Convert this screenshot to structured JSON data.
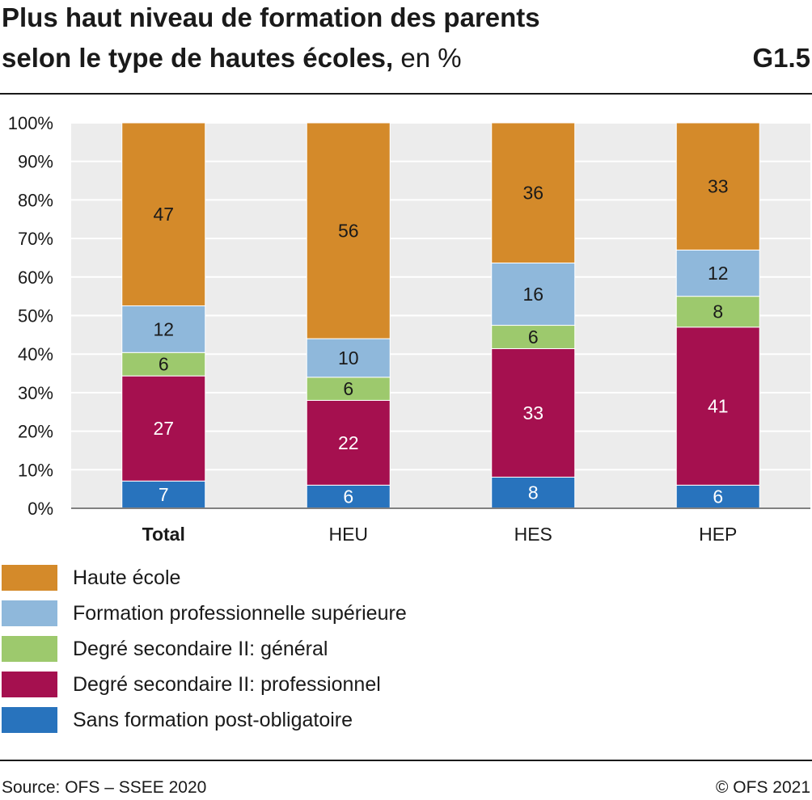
{
  "header": {
    "title_line1": "Plus haut niveau de formation des parents",
    "title_line2_bold": "selon le type de hautes écoles,",
    "title_line2_rest": " en %",
    "code": "G1.5"
  },
  "footer": {
    "source": "Source: OFS – SSEE 2020",
    "copyright": "© OFS 2021"
  },
  "chart_data": {
    "type": "bar",
    "stacked": true,
    "categories": [
      "Total",
      "HEU",
      "HES",
      "HEP"
    ],
    "bold_categories": [
      "Total"
    ],
    "ylim": [
      0,
      100
    ],
    "yticks": [
      "0%",
      "10%",
      "20%",
      "30%",
      "40%",
      "50%",
      "60%",
      "70%",
      "80%",
      "90%",
      "100%"
    ],
    "grid": "horizontal",
    "legend_position": "bottom",
    "series": [
      {
        "name": "Sans formation post-obligatoire",
        "color": "#2873bd",
        "label_color": "#ffffff",
        "values": [
          7,
          6,
          8,
          6
        ]
      },
      {
        "name": "Degré secondaire II: professionnel",
        "color": "#a5104f",
        "label_color": "#ffffff",
        "values": [
          27,
          22,
          33,
          41
        ]
      },
      {
        "name": "Degré secondaire II: général",
        "color": "#9dc96d",
        "label_color": "#1a1a1a",
        "values": [
          6,
          6,
          6,
          8
        ]
      },
      {
        "name": "Formation professionnelle supérieure",
        "color": "#8fb8db",
        "label_color": "#1a1a1a",
        "values": [
          12,
          10,
          16,
          12
        ]
      },
      {
        "name": "Haute école",
        "color": "#d48a2a",
        "label_color": "#1a1a1a",
        "values": [
          47,
          56,
          36,
          33
        ]
      }
    ]
  }
}
